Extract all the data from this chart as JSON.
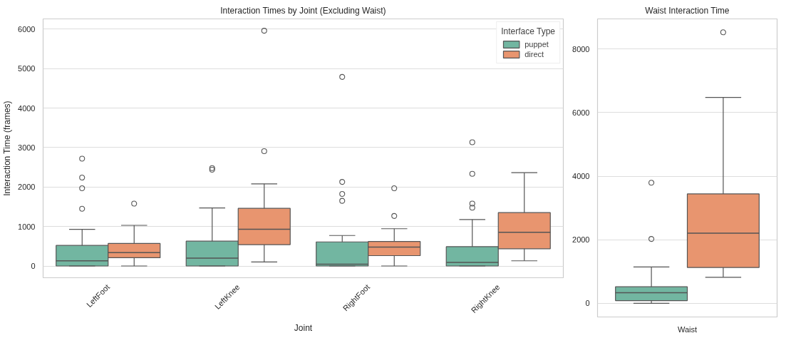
{
  "chart_data": [
    {
      "type": "box",
      "title": "Interaction Times by Joint (Excluding Waist)",
      "xlabel": "Joint",
      "ylabel": "Interaction Time (frames)",
      "legend_title": "Interface Type",
      "legend": "top right",
      "grid": "y",
      "categories": [
        "LeftFoot",
        "LeftKnee",
        "RightFoot",
        "RightKnee"
      ],
      "ylim": [
        -298,
        6260
      ],
      "yticks": [
        0,
        1000,
        2000,
        3000,
        4000,
        5000,
        6000
      ],
      "series": [
        {
          "name": "puppet",
          "color": "#72b6a1",
          "boxes": [
            {
              "low": 0,
              "q1": 0,
              "median": 130,
              "q3": 520,
              "high": 930,
              "outliers": [
                1450,
                1970,
                2240,
                2720
              ]
            },
            {
              "low": 0,
              "q1": 0,
              "median": 200,
              "q3": 630,
              "high": 1470,
              "outliers": [
                2440,
                2480
              ]
            },
            {
              "low": 0,
              "q1": 0,
              "median": 47,
              "q3": 610,
              "high": 772,
              "outliers": [
                1650,
                1825,
                2130,
                4790
              ]
            },
            {
              "low": 0,
              "q1": 0,
              "median": 90,
              "q3": 490,
              "high": 1178,
              "outliers": [
                1478,
                1580,
                2334,
                3135
              ]
            }
          ]
        },
        {
          "name": "direct",
          "color": "#e8956f",
          "boxes": [
            {
              "low": 0,
              "q1": 210,
              "median": 340,
              "q3": 570,
              "high": 1030,
              "outliers": [
                1580
              ]
            },
            {
              "low": 100,
              "q1": 540,
              "median": 930,
              "q3": 1460,
              "high": 2080,
              "outliers": [
                2910,
                5960
              ]
            },
            {
              "low": 0,
              "q1": 262,
              "median": 478,
              "q3": 621,
              "high": 944,
              "outliers": [
                1267,
                1968
              ]
            },
            {
              "low": 131,
              "q1": 436,
              "median": 855,
              "q3": 1352,
              "high": 2363
            }
          ]
        }
      ]
    },
    {
      "type": "box",
      "title": "Waist Interaction Time",
      "grid": "y",
      "categories": [
        "Waist"
      ],
      "ylim": [
        -430,
        8950
      ],
      "yticks": [
        0,
        2000,
        4000,
        6000,
        8000
      ],
      "series": [
        {
          "color": "#72b6a1",
          "boxes": [
            {
              "low": 0,
              "q1": 85,
              "median": 333,
              "q3": 520,
              "high": 1144,
              "outliers": [
                2025,
                3795
              ]
            }
          ]
        },
        {
          "color": "#e8956f",
          "boxes": [
            {
              "low": 820,
              "q1": 1128,
              "median": 2205,
              "q3": 3443,
              "high": 6477,
              "outliers": [
                8528
              ]
            }
          ]
        }
      ]
    }
  ]
}
